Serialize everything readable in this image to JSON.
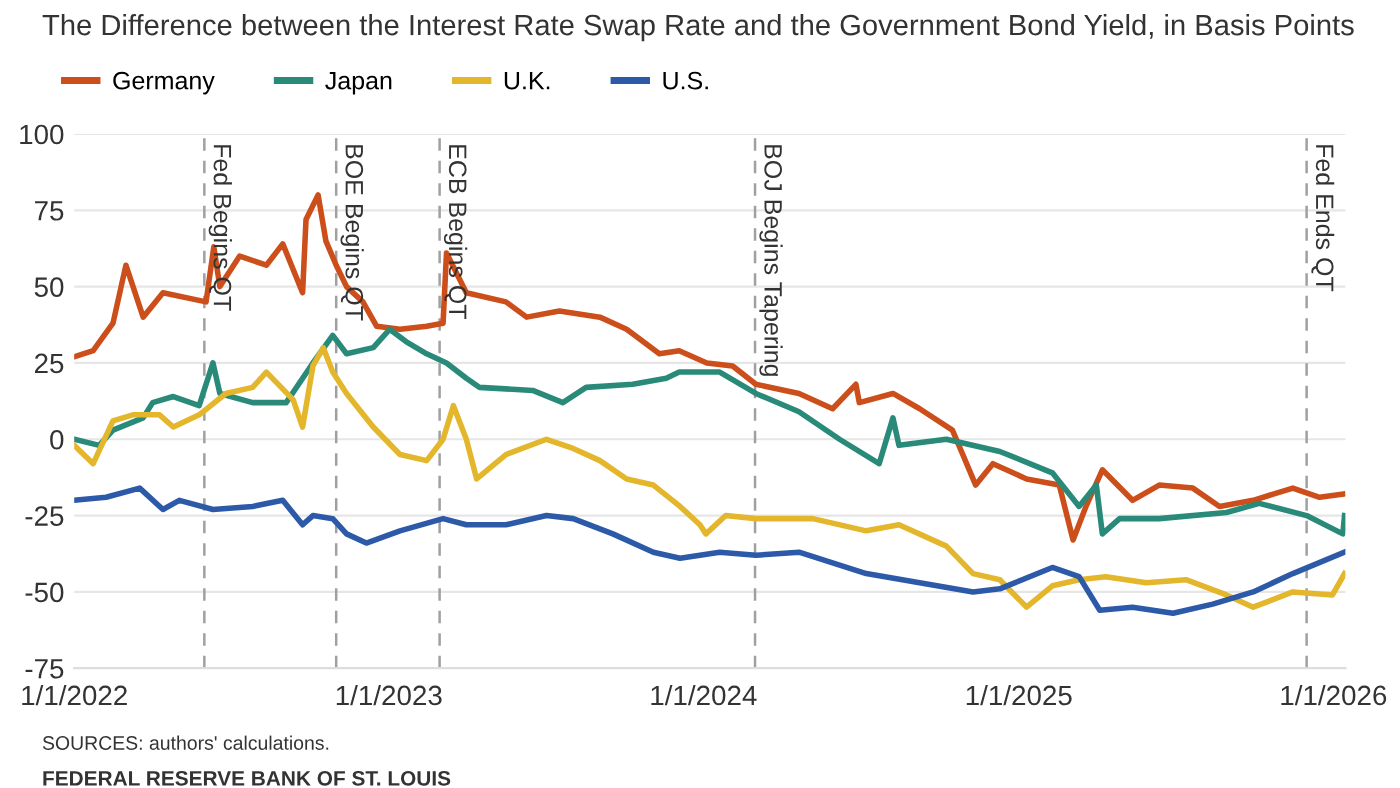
{
  "chart_data": {
    "type": "line",
    "title": "The Difference between the Interest Rate Swap Rate and the Government Bond Yield, in Basis Points",
    "xlim": [
      "2022-01-01",
      "2026-01-15"
    ],
    "xticks": [
      {
        "value": "2022-01-01",
        "label": "1/1/2022"
      },
      {
        "value": "2023-01-01",
        "label": "1/1/2023"
      },
      {
        "value": "2024-01-01",
        "label": "1/1/2024"
      },
      {
        "value": "2025-01-01",
        "label": "1/1/2025"
      },
      {
        "value": "2026-01-01",
        "label": "1/1/2026"
      }
    ],
    "ylim": [
      -75,
      100
    ],
    "yticks": [
      -75,
      -50,
      -25,
      0,
      25,
      50,
      75,
      100
    ],
    "grid": "y",
    "legend": "top left",
    "marker": "none",
    "line_style": "solid",
    "series": [
      {
        "name": "Germany",
        "color": "#cc4e1a",
        "x": [
          "2022-01-01",
          "2022-01-23",
          "2022-02-15",
          "2022-03-02",
          "2022-03-22",
          "2022-04-14",
          "2022-06-03",
          "2022-06-12",
          "2022-06-19",
          "2022-07-12",
          "2022-08-12",
          "2022-08-31",
          "2022-09-23",
          "2022-09-27",
          "2022-10-11",
          "2022-10-20",
          "2022-11-01",
          "2022-11-13",
          "2022-12-02",
          "2022-12-18",
          "2023-01-14",
          "2023-02-14",
          "2023-03-05",
          "2023-03-09",
          "2023-04-01",
          "2023-05-17",
          "2023-06-10",
          "2023-07-18",
          "2023-09-03",
          "2023-10-04",
          "2023-11-11",
          "2023-12-04",
          "2024-01-05",
          "2024-02-04",
          "2024-03-02",
          "2024-04-21",
          "2024-05-30",
          "2024-06-26",
          "2024-06-30",
          "2024-08-08",
          "2024-09-08",
          "2024-10-16",
          "2024-10-28",
          "2024-11-12",
          "2024-12-02",
          "2025-01-10",
          "2025-02-17",
          "2025-03-05",
          "2025-03-20",
          "2025-04-08",
          "2025-05-13",
          "2025-06-13",
          "2025-07-22",
          "2025-08-22",
          "2025-09-30",
          "2025-11-15",
          "2025-12-16",
          "2026-01-12"
        ],
        "values": [
          27,
          29,
          38,
          57,
          40,
          48,
          45,
          63,
          50,
          60,
          57,
          64,
          48,
          72,
          80,
          65,
          57,
          50,
          45,
          37,
          36,
          37,
          38,
          61,
          48,
          45,
          40,
          42,
          40,
          36,
          28,
          29,
          25,
          24,
          18,
          15,
          10,
          18,
          12,
          15,
          10,
          3,
          -5,
          -15,
          -8,
          -13,
          -15,
          -33,
          -22,
          -10,
          -20,
          -15,
          -16,
          -22,
          -20,
          -16,
          -19,
          -18
        ]
      },
      {
        "name": "Japan",
        "color": "#2a8a7a",
        "x": [
          "2022-01-01",
          "2022-01-30",
          "2022-02-15",
          "2022-03-22",
          "2022-04-02",
          "2022-04-26",
          "2022-05-26",
          "2022-06-11",
          "2022-06-19",
          "2022-07-27",
          "2022-09-04",
          "2022-10-05",
          "2022-10-28",
          "2022-11-13",
          "2022-12-14",
          "2023-01-02",
          "2023-01-21",
          "2023-02-14",
          "2023-03-09",
          "2023-04-01",
          "2023-04-16",
          "2023-06-17",
          "2023-07-22",
          "2023-08-18",
          "2023-10-11",
          "2023-11-19",
          "2023-12-04",
          "2024-01-20",
          "2024-03-02",
          "2024-04-21",
          "2024-06-07",
          "2024-07-23",
          "2024-08-08",
          "2024-08-15",
          "2024-10-09",
          "2024-12-10",
          "2025-02-09",
          "2025-03-12",
          "2025-04-01",
          "2025-04-08",
          "2025-04-28",
          "2025-06-13",
          "2025-08-30",
          "2025-10-07",
          "2025-12-01",
          "2026-01-12",
          "2026-01-14"
        ],
        "values": [
          0,
          -2,
          3,
          7,
          12,
          14,
          11,
          25,
          15,
          12,
          12,
          25,
          34,
          28,
          30,
          36,
          32,
          28,
          25,
          20,
          17,
          16,
          12,
          17,
          18,
          20,
          22,
          22,
          15,
          9,
          0,
          -8,
          7,
          -2,
          0,
          -4,
          -11,
          -22,
          -15,
          -31,
          -26,
          -26,
          -24,
          -21,
          -25,
          -31,
          -25
        ]
      },
      {
        "name": "U.K.",
        "color": "#e3b62b",
        "x": [
          "2022-01-01",
          "2022-01-23",
          "2022-02-15",
          "2022-03-10",
          "2022-04-10",
          "2022-04-26",
          "2022-05-26",
          "2022-06-26",
          "2022-07-27",
          "2022-08-12",
          "2022-09-12",
          "2022-09-23",
          "2022-10-05",
          "2022-10-17",
          "2022-10-28",
          "2022-11-13",
          "2022-12-14",
          "2023-01-14",
          "2023-02-14",
          "2023-03-05",
          "2023-03-17",
          "2023-04-01",
          "2023-04-13",
          "2023-05-17",
          "2023-07-03",
          "2023-08-03",
          "2023-09-03",
          "2023-10-04",
          "2023-11-04",
          "2023-12-05",
          "2023-12-28",
          "2024-01-04",
          "2024-01-27",
          "2024-03-02",
          "2024-05-07",
          "2024-07-08",
          "2024-08-15",
          "2024-10-09",
          "2024-11-09",
          "2024-12-10",
          "2025-01-10",
          "2025-02-09",
          "2025-03-12",
          "2025-04-12",
          "2025-05-29",
          "2025-07-14",
          "2025-08-30",
          "2025-09-30",
          "2025-11-15",
          "2025-12-31",
          "2026-01-14"
        ],
        "values": [
          -2,
          -8,
          6,
          8,
          8,
          4,
          8,
          15,
          17,
          22,
          13,
          4,
          24,
          30,
          22,
          15,
          4,
          -5,
          -7,
          0,
          11,
          0,
          -13,
          -5,
          0,
          -3,
          -7,
          -13,
          -15,
          -22,
          -28,
          -31,
          -25,
          -26,
          -26,
          -30,
          -28,
          -35,
          -44,
          -46,
          -55,
          -48,
          -46,
          -45,
          -47,
          -46,
          -51,
          -55,
          -50,
          -51,
          -44
        ]
      },
      {
        "name": "U.S.",
        "color": "#2d5aa8",
        "x": [
          "2022-01-01",
          "2022-02-07",
          "2022-03-18",
          "2022-04-14",
          "2022-05-03",
          "2022-06-11",
          "2022-07-27",
          "2022-08-31",
          "2022-09-23",
          "2022-10-05",
          "2022-10-28",
          "2022-11-13",
          "2022-12-06",
          "2023-01-14",
          "2023-03-05",
          "2023-04-01",
          "2023-05-17",
          "2023-07-03",
          "2023-08-03",
          "2023-09-18",
          "2023-11-04",
          "2023-12-05",
          "2024-01-20",
          "2024-03-02",
          "2024-04-21",
          "2024-07-08",
          "2024-09-08",
          "2024-11-09",
          "2024-12-10",
          "2025-02-09",
          "2025-03-12",
          "2025-04-05",
          "2025-05-13",
          "2025-06-29",
          "2025-08-14",
          "2025-09-30",
          "2025-11-15",
          "2026-01-14"
        ],
        "values": [
          -20,
          -19,
          -16,
          -23,
          -20,
          -23,
          -22,
          -20,
          -28,
          -25,
          -26,
          -31,
          -34,
          -30,
          -26,
          -28,
          -28,
          -25,
          -26,
          -31,
          -37,
          -39,
          -37,
          -38,
          -37,
          -44,
          -47,
          -50,
          -49,
          -42,
          -45,
          -56,
          -55,
          -57,
          -54,
          -50,
          -44,
          -37
        ]
      }
    ],
    "ref_lines": [
      {
        "axis": "x",
        "value": "2022-06-01",
        "label": "Fed Begins QT",
        "color": "#a0a0a0",
        "line_style": "dashed"
      },
      {
        "axis": "x",
        "value": "2022-11-01",
        "label": "BOE Begins QT",
        "color": "#a0a0a0",
        "line_style": "dashed"
      },
      {
        "axis": "x",
        "value": "2023-03-01",
        "label": "ECB Begins QT",
        "color": "#a0a0a0",
        "line_style": "dashed"
      },
      {
        "axis": "x",
        "value": "2024-03-01",
        "label": "BOJ Begins Tapering",
        "color": "#a0a0a0",
        "line_style": "dashed"
      },
      {
        "axis": "x",
        "value": "2025-12-01",
        "label": "Fed Ends QT",
        "color": "#a0a0a0",
        "line_style": "dashed"
      }
    ],
    "annotations": [
      "SOURCES: authors' calculations.",
      "FEDERAL RESERVE BANK OF ST. LOUIS"
    ]
  }
}
